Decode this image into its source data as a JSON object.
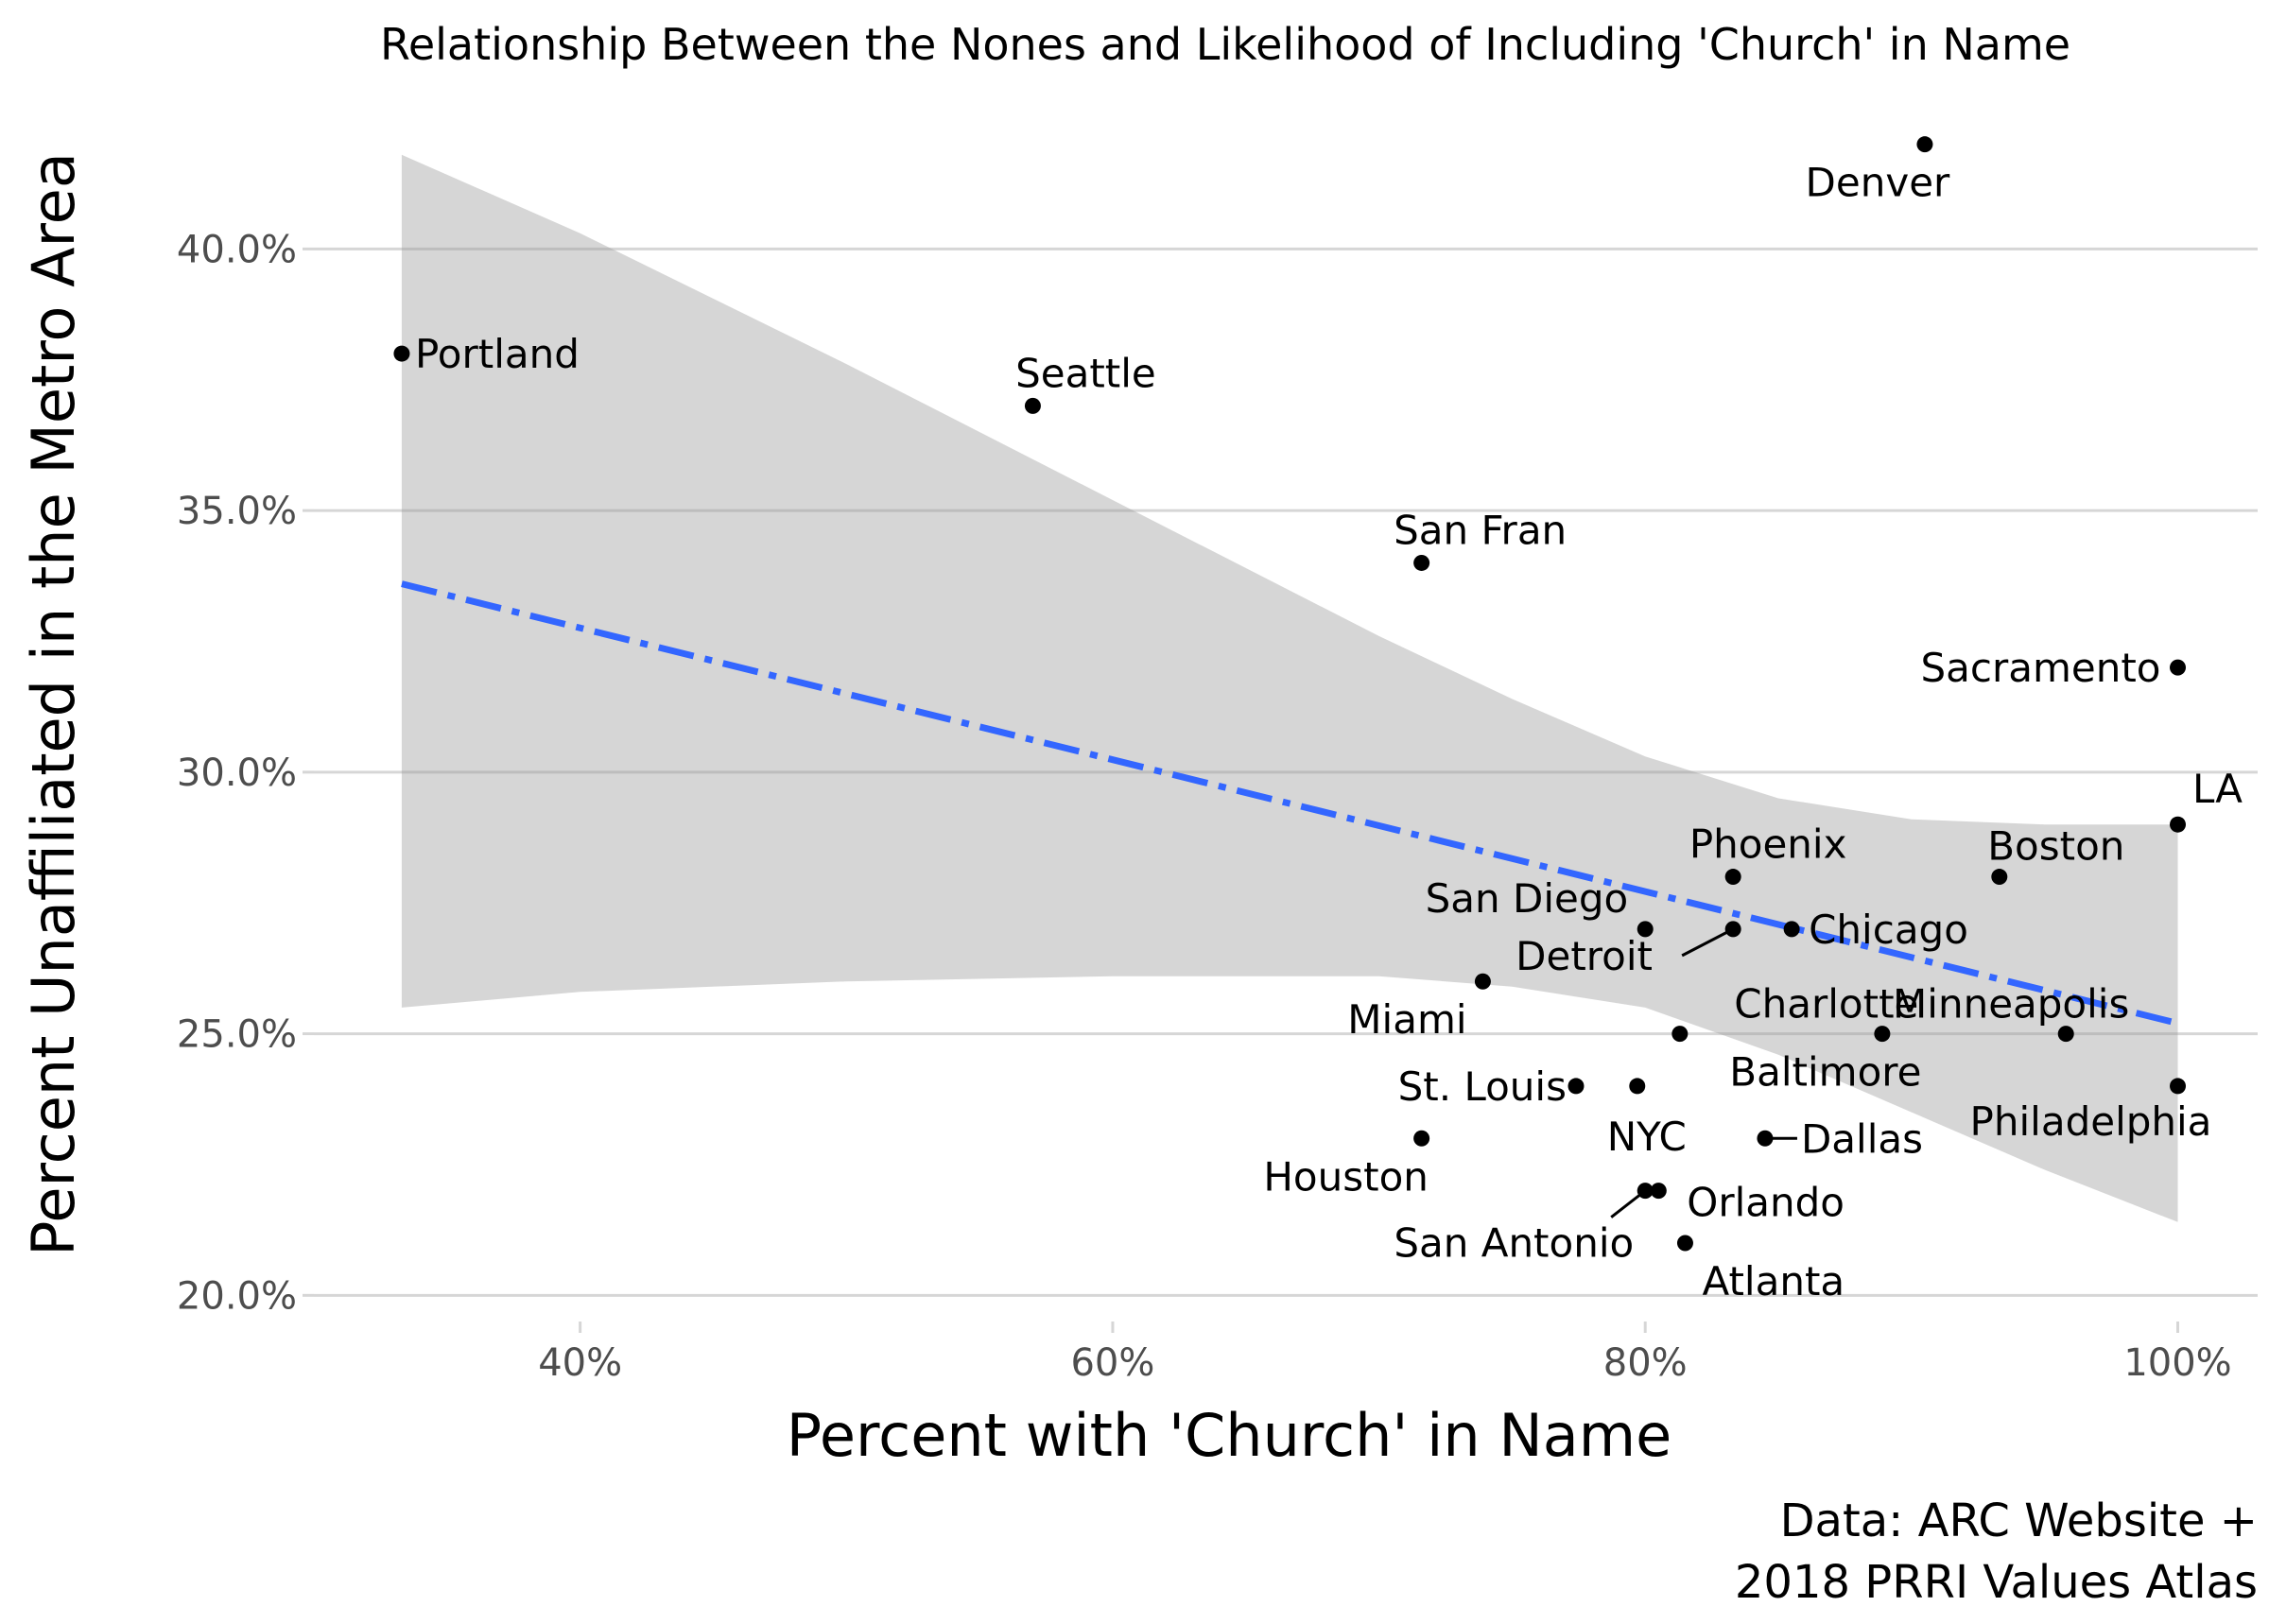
{
  "chart_data": {
    "type": "scatter",
    "title": "Relationship Between the Nones and Likelihood of Including 'Church' in Name",
    "xlabel": "Percent with 'Church' in Name",
    "ylabel": "Percent Unaffiliated in the Metro Area",
    "caption": [
      "Data: ARC Website +",
      "2018 PRRI Values Atlas"
    ],
    "xlim": [
      30,
      103
    ],
    "ylim": [
      19.5,
      42.5
    ],
    "x_ticks": [
      40,
      60,
      80,
      100
    ],
    "x_tick_labels": [
      "40%",
      "60%",
      "80%",
      "100%"
    ],
    "y_ticks": [
      20,
      25,
      30,
      35,
      40
    ],
    "y_tick_labels": [
      "20.0%",
      "25.0%",
      "30.0%",
      "35.0%",
      "40.0%"
    ],
    "grid": "horizontal",
    "legend": "none",
    "colors": {
      "point": "#000000",
      "fit_line": "#3366ff",
      "confidence_band": "#999999"
    },
    "points": [
      {
        "label": "Portland",
        "x": 33.3,
        "y": 38
      },
      {
        "label": "Seattle",
        "x": 57,
        "y": 37
      },
      {
        "label": "San Fran",
        "x": 71.6,
        "y": 34
      },
      {
        "label": "Denver",
        "x": 90.5,
        "y": 42
      },
      {
        "label": "Sacramento",
        "x": 100,
        "y": 32
      },
      {
        "label": "LA",
        "x": 100,
        "y": 29
      },
      {
        "label": "Boston",
        "x": 93.3,
        "y": 28
      },
      {
        "label": "Phoenix",
        "x": 83.3,
        "y": 28
      },
      {
        "label": "San Diego",
        "x": 80,
        "y": 27
      },
      {
        "label": "Detroit",
        "x": 83.3,
        "y": 27
      },
      {
        "label": "Chicago",
        "x": 85.5,
        "y": 27
      },
      {
        "label": "Miami",
        "x": 73.9,
        "y": 26
      },
      {
        "label": "Charlotte",
        "x": 81.3,
        "y": 25
      },
      {
        "label": "Baltimore",
        "x": 88.9,
        "y": 25
      },
      {
        "label": "Minneapolis",
        "x": 95.8,
        "y": 25
      },
      {
        "label": "St. Louis",
        "x": 77.4,
        "y": 24
      },
      {
        "label": "NYC",
        "x": 79.7,
        "y": 24
      },
      {
        "label": "Philadelphia",
        "x": 100,
        "y": 24
      },
      {
        "label": "Houston",
        "x": 71.6,
        "y": 23
      },
      {
        "label": "Dallas",
        "x": 84.5,
        "y": 23
      },
      {
        "label": "San Antonio",
        "x": 80,
        "y": 22
      },
      {
        "label": "Orlando",
        "x": 80.5,
        "y": 22
      },
      {
        "label": "Atlanta",
        "x": 81.5,
        "y": 21
      }
    ],
    "fit_line": {
      "x": [
        33.3,
        100
      ],
      "y": [
        33.6,
        25.2
      ],
      "style": "dashed"
    },
    "confidence_band": {
      "x": [
        33.3,
        40,
        50,
        60,
        70,
        75,
        80,
        85,
        90,
        95,
        100
      ],
      "upper": [
        41.8,
        40.3,
        37.8,
        35.2,
        32.6,
        31.4,
        30.3,
        29.5,
        29.1,
        29.0,
        29.0
      ],
      "lower": [
        25.5,
        25.8,
        26.0,
        26.1,
        26.1,
        25.9,
        25.5,
        24.6,
        23.5,
        22.4,
        21.4
      ]
    }
  }
}
